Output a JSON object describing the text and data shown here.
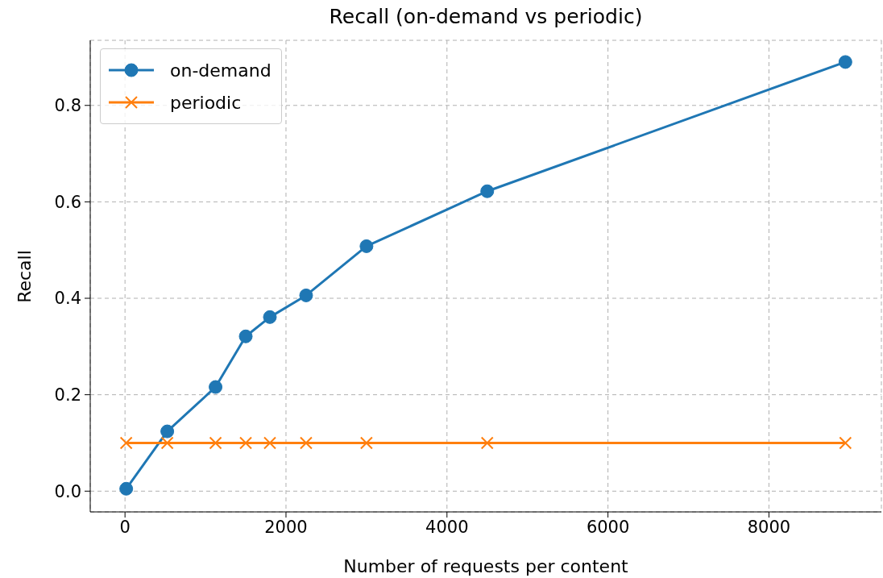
{
  "chart_data": {
    "type": "line",
    "title": "Recall (on-demand vs periodic)",
    "xlabel": "Number of requests per content",
    "ylabel": "Recall",
    "x": [
      15,
      525,
      1125,
      1500,
      1800,
      2250,
      3000,
      4500,
      8950
    ],
    "series": [
      {
        "name": "on-demand",
        "color": "#1f77b4",
        "marker": "circle",
        "values": [
          0.005,
          0.124,
          0.216,
          0.321,
          0.361,
          0.406,
          0.508,
          0.622,
          0.89
        ]
      },
      {
        "name": "periodic",
        "color": "#ff7f0e",
        "marker": "cross",
        "values": [
          0.1,
          0.1,
          0.1,
          0.1,
          0.1,
          0.1,
          0.1,
          0.1,
          0.1
        ]
      }
    ],
    "xlim": [
      -432,
      9397
    ],
    "xticks": [
      0,
      2000,
      4000,
      6000,
      8000
    ],
    "ylim": [
      -0.043,
      0.935
    ],
    "yticks": [
      {
        "value": 0,
        "label": "0.0"
      },
      0.2,
      0.4,
      0.6,
      0.8
    ],
    "grid": true,
    "legend": "top left",
    "line_style": "solid"
  }
}
